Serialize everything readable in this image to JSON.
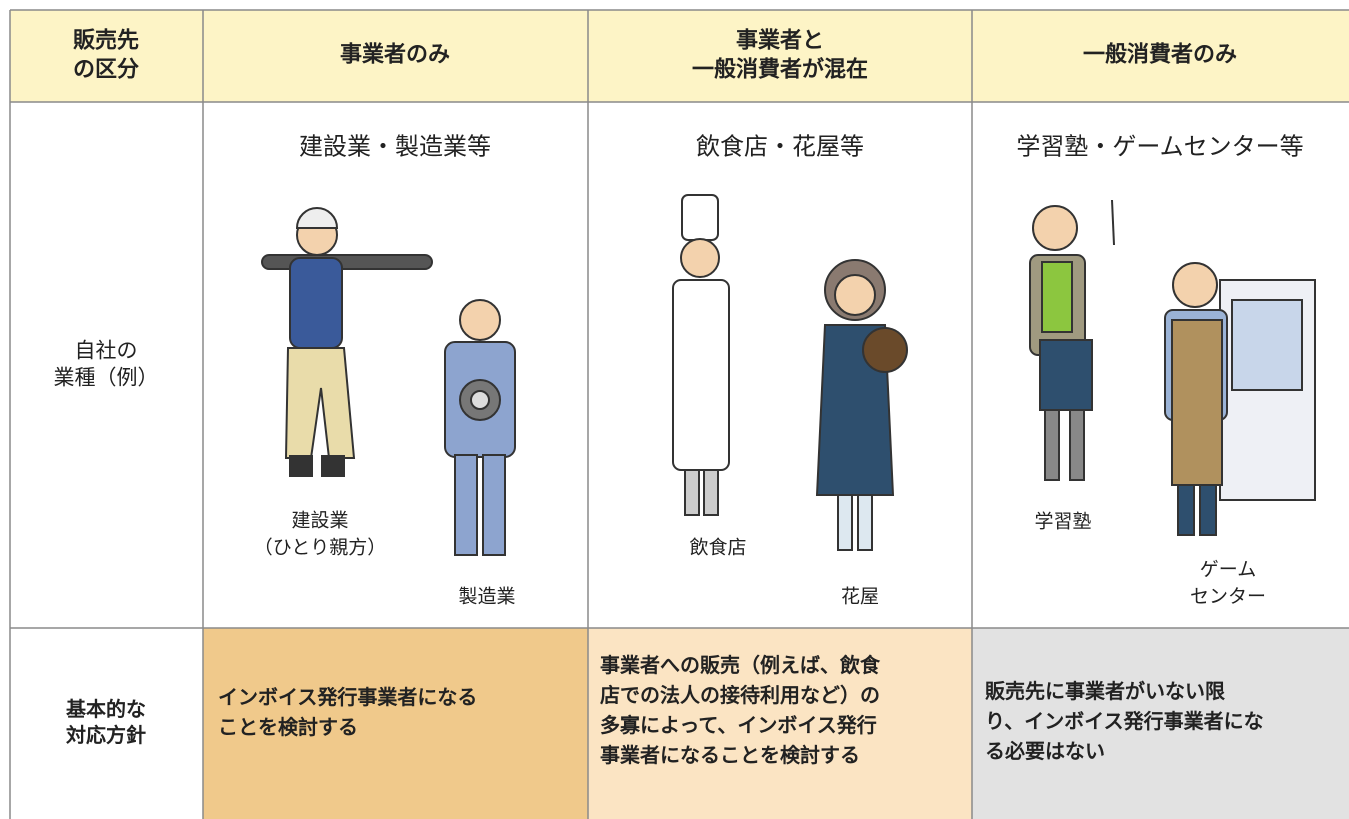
{
  "table": {
    "header": [
      [
        "販売先",
        "の区分"
      ],
      [
        "事業者のみ"
      ],
      [
        "事業者と",
        "一般消費者が混在"
      ],
      [
        "一般消費者のみ"
      ]
    ],
    "industry_row": {
      "label": [
        "自社の",
        "業種（例）"
      ],
      "columns": [
        {
          "title": "建設業・製造業等",
          "figures": [
            [
              "建設業",
              "（ひとり親方）"
            ],
            [
              "製造業"
            ]
          ]
        },
        {
          "title": "飲食店・花屋等",
          "figures": [
            [
              "飲食店"
            ],
            [
              "花屋"
            ]
          ]
        },
        {
          "title": "学習塾・ゲームセンター等",
          "figures": [
            [
              "学習塾"
            ],
            [
              "ゲーム",
              "センター"
            ]
          ]
        }
      ]
    },
    "policy_row": {
      "label": [
        "基本的な",
        "対応方針"
      ],
      "cells": [
        [
          "インボイス発行事業者になる",
          "ことを検討する"
        ],
        [
          "事業者への販売（例えば、飲食",
          "店での法人の接待利用など）の",
          "多寡によって、インボイス発行",
          "事業者になることを検討する"
        ],
        [
          "販売先に事業者がいない限",
          "り、インボイス発行事業者にな",
          "る必要はない"
        ]
      ]
    }
  }
}
